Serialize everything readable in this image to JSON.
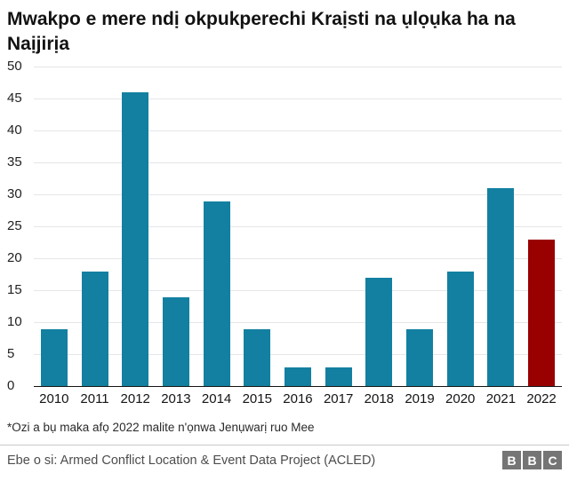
{
  "chart": {
    "title": "Mwakpo e mere ndị okpukperechi Kraịsti na ụlọụka ha na Naịjirịa",
    "footnote": "*Ozi a bụ maka afọ 2022 malite n'ọnwa Jenụwarị ruo Mee",
    "source": "Ebe o si: Armed Conflict Location & Event Data Project (ACLED)"
  },
  "chart_data": {
    "type": "bar",
    "categories": [
      "2010",
      "2011",
      "2012",
      "2013",
      "2014",
      "2015",
      "2016",
      "2017",
      "2018",
      "2019",
      "2020",
      "2021",
      "2022"
    ],
    "values": [
      9,
      18,
      46,
      14,
      29,
      9,
      3,
      3,
      17,
      9,
      18,
      31,
      23
    ],
    "title": "Mwakpo e mere ndị okpukperechi Kraịsti na ụlọụka ha na Naịjirịa",
    "xlabel": "",
    "ylabel": "",
    "ylim": [
      0,
      50
    ],
    "ytick_step": 5,
    "grid": true,
    "legend": false,
    "bar_color": "#1380A1",
    "highlight_index": 12,
    "highlight_color": "#990000",
    "gridline_color": "#e6e6e6",
    "baseline_color": "#141414"
  },
  "logo": {
    "letters": [
      "B",
      "B",
      "C"
    ]
  }
}
